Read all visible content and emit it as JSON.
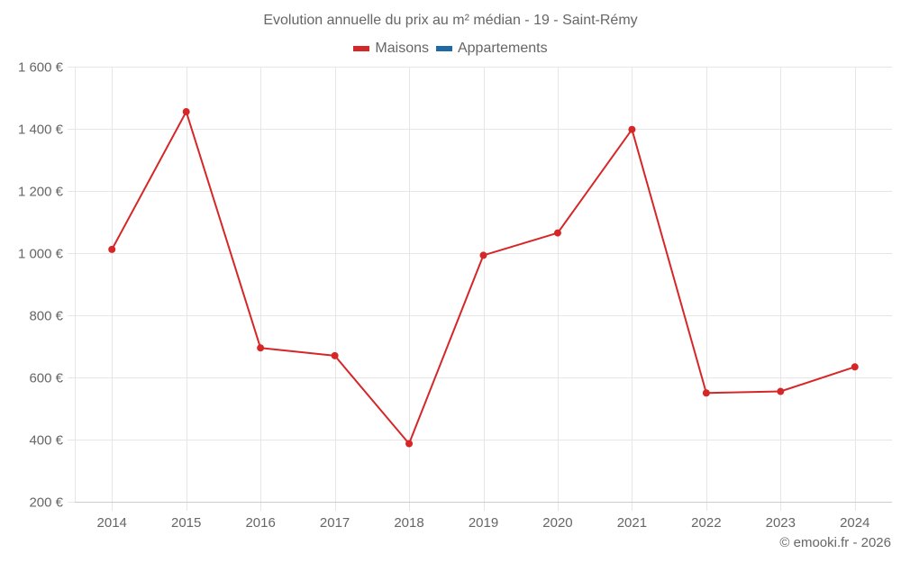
{
  "title": "Evolution annuelle du prix au m² médian - 19 - Saint-Rémy",
  "legend": [
    {
      "label": "Maisons",
      "color": "#d62728"
    },
    {
      "label": "Appartements",
      "color": "#1f6aa5"
    }
  ],
  "credits": "© emooki.fr - 2026",
  "chart_data": {
    "type": "line",
    "title": "Evolution annuelle du prix au m² médian - 19 - Saint-Rémy",
    "xlabel": "",
    "ylabel": "",
    "categories": [
      "2014",
      "2015",
      "2016",
      "2017",
      "2018",
      "2019",
      "2020",
      "2021",
      "2022",
      "2023",
      "2024"
    ],
    "series": [
      {
        "name": "Maisons",
        "color": "#d62728",
        "values": [
          1012,
          1455,
          695,
          670,
          387,
          993,
          1065,
          1398,
          550,
          555,
          634
        ]
      },
      {
        "name": "Appartements",
        "color": "#1f6aa5",
        "values": []
      }
    ],
    "ylim": [
      200,
      1600
    ],
    "yticks": [
      200,
      400,
      600,
      800,
      1000,
      1200,
      1400,
      1600
    ],
    "ytick_labels": [
      "200 €",
      "400 €",
      "600 €",
      "800 €",
      "1 000 €",
      "1 200 €",
      "1 400 €",
      "1 600 €"
    ],
    "grid": true,
    "legend_position": "top"
  }
}
